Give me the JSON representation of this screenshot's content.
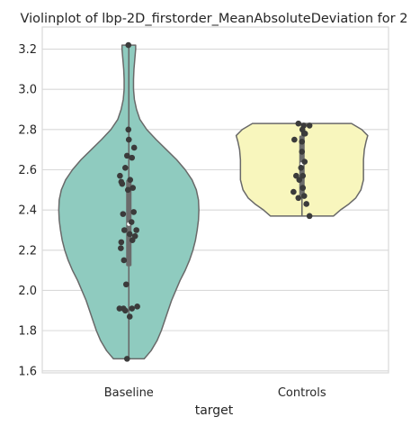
{
  "chart_data": {
    "type": "violin",
    "title": "Violinplot of lbp-2D_firstorder_MeanAbsoluteDeviation for 2",
    "xlabel": "target",
    "ylabel": "",
    "ylim": [
      1.59,
      3.31
    ],
    "yticks": [
      1.6,
      1.8,
      2.0,
      2.2,
      2.4,
      2.6,
      2.8,
      3.0,
      3.2
    ],
    "ytick_labels": [
      "1.6",
      "1.8",
      "2.0",
      "2.2",
      "2.4",
      "2.6",
      "2.8",
      "3.0",
      "3.2"
    ],
    "grid": true,
    "categories": [
      "Baseline",
      "Controls"
    ],
    "groups": [
      {
        "category": "Baseline",
        "color": "#8fcbbf",
        "min": 1.66,
        "max": 3.22,
        "q1": 2.12,
        "median": 2.33,
        "q3": 2.55,
        "whisker_low": 1.66,
        "whisker_high": 3.22,
        "density_halfwidths": [
          [
            1.66,
            0.18
          ],
          [
            1.7,
            0.26
          ],
          [
            1.75,
            0.33
          ],
          [
            1.8,
            0.38
          ],
          [
            1.85,
            0.42
          ],
          [
            1.9,
            0.46
          ],
          [
            1.95,
            0.5
          ],
          [
            2.0,
            0.55
          ],
          [
            2.05,
            0.6
          ],
          [
            2.1,
            0.66
          ],
          [
            2.15,
            0.71
          ],
          [
            2.2,
            0.75
          ],
          [
            2.25,
            0.78
          ],
          [
            2.3,
            0.8
          ],
          [
            2.35,
            0.815
          ],
          [
            2.4,
            0.82
          ],
          [
            2.45,
            0.815
          ],
          [
            2.5,
            0.79
          ],
          [
            2.55,
            0.74
          ],
          [
            2.6,
            0.66
          ],
          [
            2.65,
            0.56
          ],
          [
            2.7,
            0.44
          ],
          [
            2.75,
            0.32
          ],
          [
            2.8,
            0.21
          ],
          [
            2.85,
            0.13
          ],
          [
            2.9,
            0.09
          ],
          [
            2.95,
            0.065
          ],
          [
            3.0,
            0.055
          ],
          [
            3.05,
            0.055
          ],
          [
            3.1,
            0.06
          ],
          [
            3.15,
            0.07
          ],
          [
            3.2,
            0.08
          ],
          [
            3.22,
            0.08
          ]
        ],
        "points": [
          [
            -0.01,
            3.22
          ],
          [
            -0.01,
            2.8
          ],
          [
            0.0,
            2.75
          ],
          [
            0.12,
            2.71
          ],
          [
            -0.04,
            2.67
          ],
          [
            0.07,
            2.66
          ],
          [
            -0.08,
            2.61
          ],
          [
            -0.2,
            2.57
          ],
          [
            0.03,
            2.55
          ],
          [
            -0.17,
            2.54
          ],
          [
            0.09,
            2.51
          ],
          [
            -0.15,
            2.53
          ],
          [
            -0.02,
            2.5
          ],
          [
            -0.13,
            2.38
          ],
          [
            0.11,
            2.39
          ],
          [
            0.06,
            2.34
          ],
          [
            0.17,
            2.3
          ],
          [
            -0.1,
            2.3
          ],
          [
            0.02,
            2.28
          ],
          [
            -0.17,
            2.24
          ],
          [
            0.14,
            2.27
          ],
          [
            0.08,
            2.25
          ],
          [
            -0.18,
            2.21
          ],
          [
            -0.11,
            2.15
          ],
          [
            -0.06,
            2.03
          ],
          [
            -0.21,
            1.91
          ],
          [
            -0.12,
            1.91
          ],
          [
            0.07,
            1.91
          ],
          [
            0.19,
            1.92
          ],
          [
            -0.08,
            1.9
          ],
          [
            0.02,
            1.87
          ],
          [
            -0.04,
            1.66
          ]
        ]
      },
      {
        "category": "Controls",
        "color": "#f8f6bd",
        "min": 2.37,
        "max": 2.83,
        "q1": 2.47,
        "median": 2.63,
        "q3": 2.77,
        "whisker_low": 2.37,
        "whisker_high": 2.83,
        "density_halfwidths": [
          [
            2.37,
            0.37
          ],
          [
            2.4,
            0.45
          ],
          [
            2.43,
            0.55
          ],
          [
            2.46,
            0.63
          ],
          [
            2.5,
            0.69
          ],
          [
            2.55,
            0.72
          ],
          [
            2.6,
            0.72
          ],
          [
            2.65,
            0.72
          ],
          [
            2.7,
            0.73
          ],
          [
            2.74,
            0.75
          ],
          [
            2.77,
            0.77
          ],
          [
            2.8,
            0.7
          ],
          [
            2.83,
            0.58
          ]
        ],
        "points": [
          [
            -0.08,
            2.83
          ],
          [
            0.04,
            2.82
          ],
          [
            0.17,
            2.82
          ],
          [
            0.01,
            2.8
          ],
          [
            0.05,
            2.78
          ],
          [
            0.07,
            2.78
          ],
          [
            -0.17,
            2.75
          ],
          [
            0.0,
            2.74
          ],
          [
            0.0,
            2.69
          ],
          [
            0.06,
            2.64
          ],
          [
            -0.02,
            2.61
          ],
          [
            0.02,
            2.57
          ],
          [
            -0.13,
            2.57
          ],
          [
            -0.06,
            2.55
          ],
          [
            0.02,
            2.51
          ],
          [
            -0.19,
            2.49
          ],
          [
            0.05,
            2.47
          ],
          [
            -0.08,
            2.46
          ],
          [
            0.1,
            2.43
          ],
          [
            0.17,
            2.37
          ]
        ]
      }
    ],
    "median_marker_color": "#ffffff",
    "box_color": "#6b6b6b",
    "point_color": "#3b3b3b",
    "outline_color": "#696969",
    "grid_color": "#d9d9d9"
  }
}
